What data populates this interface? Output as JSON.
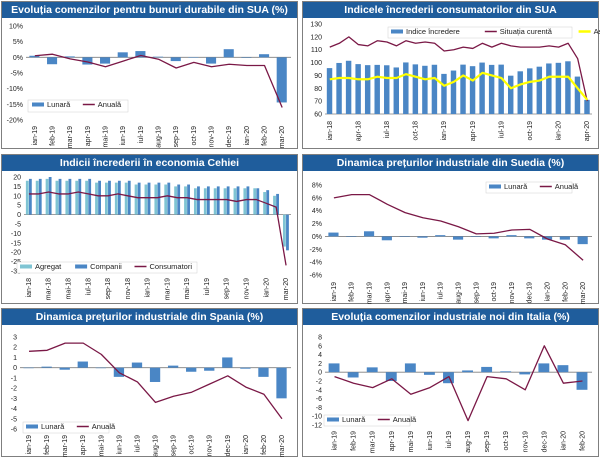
{
  "colors": {
    "bar": "#4a86c5",
    "line": "#7a1846",
    "line_alt": "#ffff00",
    "bar_alt": "#7fc4d3",
    "title_bg": "#1f5d9c",
    "zero": "#7f7f7f"
  },
  "chart_data": [
    {
      "id": "c1",
      "type": "bar",
      "title": "Evoluția comenzilor pentru bunuri durabile din SUA (%)",
      "categories": [
        "ian-19",
        "feb-19",
        "mar-19",
        "apr-19",
        "mai-19",
        "iun-19",
        "iul-19",
        "aug-19",
        "sep-19",
        "oct-19",
        "nov-19",
        "dec-19",
        "ian-20",
        "feb-20",
        "mar-20"
      ],
      "ylim": [
        -20,
        10
      ],
      "yticks": [
        10,
        5,
        0,
        -5,
        -10,
        -15,
        -20
      ],
      "ytick_labels": [
        "10%",
        "5%",
        "0%",
        "-5%",
        "-10%",
        "-15%",
        "-20%"
      ],
      "series": [
        {
          "name": "Lunară",
          "kind": "bar",
          "values": [
            0.5,
            -2.2,
            0.3,
            -2.3,
            -2,
            1.6,
            2,
            0.2,
            -1.2,
            0.1,
            -2,
            2.6,
            0,
            1,
            -14.4
          ]
        },
        {
          "name": "Anuală",
          "kind": "line",
          "values": [
            0.5,
            1,
            -0.5,
            -1.5,
            -3,
            -1.2,
            0.6,
            -0.6,
            -3.4,
            -1.6,
            -3,
            -2.2,
            -2.6,
            -2.6,
            -16
          ]
        }
      ]
    },
    {
      "id": "c2",
      "type": "bar",
      "title": "Indicele încrederii consumatorilor din SUA",
      "categories": [
        "ian-18",
        "feb-18",
        "mar-18",
        "apr-18",
        "mai-18",
        "iun-18",
        "iul-18",
        "aug-18",
        "sep-18",
        "oct-18",
        "nov-18",
        "dec-18",
        "ian-19",
        "feb-19",
        "mar-19",
        "apr-19",
        "mai-19",
        "iun-19",
        "iul-19",
        "aug-19",
        "sep-19",
        "oct-19",
        "nov-19",
        "dec-19",
        "ian-20",
        "feb-20",
        "mar-20",
        "apr-20"
      ],
      "xtick_labels": [
        "ian-18",
        "apr-18",
        "iul-18",
        "oct-18",
        "ian-19",
        "apr-19",
        "iul-19",
        "oct-19",
        "ian-20",
        "apr-20"
      ],
      "ylim": [
        60,
        130
      ],
      "yticks": [
        60,
        70,
        80,
        90,
        100,
        110,
        120,
        130
      ],
      "ytick_labels": [
        "60",
        "70",
        "80",
        "90",
        "100",
        "110",
        "120",
        "130"
      ],
      "series": [
        {
          "name": "Indice încredere",
          "kind": "bar",
          "values": [
            95.7,
            99.7,
            101.4,
            98.8,
            98,
            98.2,
            97.9,
            96.2,
            100.1,
            98.6,
            97.5,
            98.3,
            91.2,
            93.8,
            98.4,
            97.2,
            100,
            98.2,
            98.4,
            89.8,
            93.2,
            95.5,
            96.8,
            99.3,
            99.8,
            101,
            89.1,
            71
          ]
        },
        {
          "name": "Situația curentă",
          "kind": "line",
          "values": [
            112,
            115,
            120,
            114,
            113,
            117,
            116,
            113,
            117,
            115,
            116,
            115,
            109,
            110,
            112,
            111,
            115,
            112,
            115,
            113,
            112,
            112,
            112,
            113,
            112,
            115,
            103,
            70
          ]
        },
        {
          "name": "Așteptări",
          "kind": "line",
          "color": "alt",
          "values": [
            87,
            88,
            88,
            87,
            87,
            89,
            88,
            88,
            91,
            89,
            87,
            88,
            82,
            85,
            90,
            86,
            92,
            90,
            88,
            80,
            83,
            85,
            86,
            89,
            89,
            89,
            80,
            71
          ]
        }
      ]
    },
    {
      "id": "c3",
      "type": "bar",
      "title": "Indicii încrederii în economia Cehiei",
      "categories": [
        "ian-18",
        "feb-18",
        "mar-18",
        "apr-18",
        "mai-18",
        "iun-18",
        "iul-18",
        "aug-18",
        "sep-18",
        "oct-18",
        "nov-18",
        "dec-18",
        "ian-19",
        "feb-19",
        "mar-19",
        "apr-19",
        "mai-19",
        "iun-19",
        "iul-19",
        "aug-19",
        "sep-19",
        "oct-19",
        "nov-19",
        "dec-19",
        "ian-20",
        "feb-20",
        "mar-20"
      ],
      "xtick_labels": [
        "ian-18",
        "mar-18",
        "mai-18",
        "iul-18",
        "sep-18",
        "nov-18",
        "ian-19",
        "mar-19",
        "mai-19",
        "iul-19",
        "sep-19",
        "nov-19",
        "ian-20",
        "mar-20"
      ],
      "ylim": [
        -30,
        20
      ],
      "yticks": [
        20,
        15,
        10,
        5,
        0,
        -5,
        -10,
        -15,
        -20,
        -25,
        -30
      ],
      "ytick_labels": [
        "20",
        "15",
        "10",
        "5",
        "0",
        "-5",
        "-10",
        "-15",
        "-20",
        "-25",
        "-30"
      ],
      "series": [
        {
          "name": "Agregat",
          "kind": "bar",
          "color": "alt",
          "values": [
            18,
            18,
            19,
            18,
            18,
            18,
            18,
            17,
            17,
            17,
            17,
            16,
            16,
            16,
            16,
            15,
            15,
            14,
            14,
            14,
            14,
            14,
            14,
            14,
            12,
            10,
            -17
          ]
        },
        {
          "name": "Companii",
          "kind": "bar",
          "values": [
            19,
            19,
            20,
            19,
            19,
            19,
            19,
            18,
            18,
            18,
            18,
            17,
            17,
            17,
            17,
            16,
            16,
            15,
            15,
            15,
            15,
            15,
            15,
            14,
            13,
            11,
            -19
          ]
        },
        {
          "name": "Consumatori",
          "kind": "line",
          "values": [
            11,
            11,
            12,
            11,
            11,
            12,
            11,
            10,
            10,
            11,
            10,
            9,
            9,
            9,
            10,
            9,
            9,
            8,
            8,
            8,
            8,
            7,
            8,
            8,
            6,
            4,
            -27
          ]
        }
      ]
    },
    {
      "id": "c4",
      "type": "bar",
      "title": "Dinamica prețurilor industriale din Suedia (%)",
      "categories": [
        "ian-19",
        "feb-19",
        "mar-19",
        "apr-19",
        "mai-19",
        "iun-19",
        "iul-19",
        "aug-19",
        "sep-19",
        "oct-19",
        "nov-19",
        "dec-19",
        "ian-20",
        "feb-20",
        "mar-20"
      ],
      "ylim": [
        -6,
        8
      ],
      "yticks": [
        8,
        6,
        4,
        2,
        0,
        -2,
        -4,
        -6
      ],
      "ytick_labels": [
        "8%",
        "6%",
        "4%",
        "2%",
        "0%",
        "-2%",
        "-4%",
        "-6%"
      ],
      "series": [
        {
          "name": "Lunară",
          "kind": "bar",
          "values": [
            0.6,
            0,
            0.8,
            -0.6,
            0,
            -0.2,
            0.2,
            -0.5,
            0,
            -0.3,
            0.2,
            -0.3,
            -0.5,
            -0.5,
            -1.2
          ]
        },
        {
          "name": "Anuală",
          "kind": "line",
          "values": [
            6,
            6.5,
            6.5,
            5,
            3.7,
            2.9,
            2.4,
            1.5,
            0.4,
            0.5,
            1,
            1.1,
            -0.4,
            -1.3,
            -3.7
          ]
        }
      ]
    },
    {
      "id": "c5",
      "type": "bar",
      "title": "Dinamica prețurilor industriale din Spania (%)",
      "categories": [
        "ian-19",
        "feb-19",
        "mar-19",
        "apr-19",
        "mai-19",
        "iun-19",
        "iul-19",
        "aug-19",
        "sep-19",
        "oct-19",
        "nov-19",
        "dec-19",
        "ian-20",
        "feb-20",
        "mar-20"
      ],
      "ylim": [
        -6,
        3
      ],
      "yticks": [
        3,
        2,
        1,
        0,
        -1,
        -2,
        -3,
        -4,
        -5,
        -6
      ],
      "ytick_labels": [
        "3",
        "2",
        "1",
        "0",
        "-1",
        "-2",
        "-3",
        "-4",
        "-5",
        "-6"
      ],
      "series": [
        {
          "name": "Lunară",
          "kind": "bar",
          "values": [
            0,
            0.1,
            -0.2,
            0.6,
            0,
            -0.9,
            0.5,
            -1.4,
            0.2,
            -0.4,
            -0.3,
            1,
            -0.1,
            -0.9,
            -3
          ]
        },
        {
          "name": "Anuală",
          "kind": "line",
          "values": [
            1.6,
            1.7,
            2.4,
            2.4,
            1.3,
            -0.5,
            -1.4,
            -3.4,
            -2.8,
            -2.4,
            -1.6,
            -0.8,
            -1.9,
            -2.6,
            -5
          ]
        }
      ]
    },
    {
      "id": "c6",
      "type": "bar",
      "title": "Evoluția comenzilor industriale noi din Italia (%)",
      "categories": [
        "ian-19",
        "feb-19",
        "mar-19",
        "apr-19",
        "mai-19",
        "iun-19",
        "iul-19",
        "aug-19",
        "sep-19",
        "oct-19",
        "nov-19",
        "dec-19",
        "ian-20",
        "feb-20"
      ],
      "ylim": [
        -12,
        8
      ],
      "yticks": [
        8,
        6,
        4,
        2,
        0,
        -2,
        -4,
        -6,
        -8,
        -10,
        -12
      ],
      "ytick_labels": [
        "8",
        "6",
        "4",
        "2",
        "0",
        "-2",
        "-4",
        "-6",
        "-8",
        "-10",
        "-12"
      ],
      "series": [
        {
          "name": "Lunară",
          "kind": "bar",
          "values": [
            2,
            -1.2,
            1.1,
            -2,
            2,
            -0.6,
            -2.5,
            0.4,
            1.2,
            0.2,
            -0.5,
            2,
            1.6,
            -4
          ]
        },
        {
          "name": "Anuală",
          "kind": "line",
          "values": [
            -1,
            -2.5,
            -3.5,
            -1.5,
            -5,
            -3.5,
            -1,
            -11,
            -1,
            -1.5,
            -4,
            6,
            -2.5,
            -2
          ]
        }
      ]
    }
  ]
}
